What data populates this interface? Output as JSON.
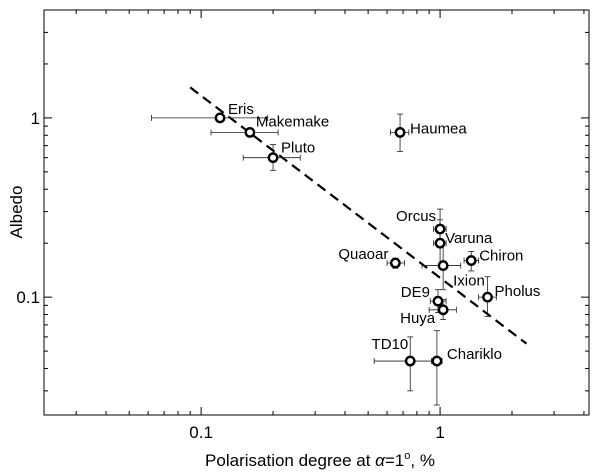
{
  "chart_data": {
    "type": "scatter",
    "xlabel_main": "Polarisation degree at ",
    "xlabel_alpha": "α",
    "xlabel_eq": "=1",
    "xlabel_deg": "o",
    "xlabel_unit": ", %",
    "ylabel": "Albedo",
    "xscale": "log",
    "yscale": "log",
    "xlim": [
      0.022,
      4.2
    ],
    "ylim": [
      0.022,
      4.0
    ],
    "xticks": [
      {
        "value": 0.1,
        "label": "0.1"
      },
      {
        "value": 1,
        "label": "1"
      }
    ],
    "yticks": [
      {
        "value": 0.1,
        "label": "0.1"
      },
      {
        "value": 1,
        "label": "1"
      }
    ],
    "grid": false,
    "trend_line": {
      "x": [
        0.09,
        2.3
      ],
      "y": [
        1.48,
        0.055
      ],
      "style": "dashed"
    },
    "points": [
      {
        "label": "Eris",
        "x": 0.12,
        "y": 1.0,
        "xerr": [
          0.062,
          0.19
        ],
        "yerr": [
          0.97,
          1.03
        ]
      },
      {
        "label": "Makemake",
        "x": 0.16,
        "y": 0.83,
        "xerr": [
          0.11,
          0.21
        ],
        "yerr": [
          0.79,
          0.87
        ]
      },
      {
        "label": "Pluto",
        "x": 0.2,
        "y": 0.6,
        "xerr": [
          0.15,
          0.26
        ],
        "yerr": [
          0.51,
          0.71
        ]
      },
      {
        "label": "Haumea",
        "x": 0.68,
        "y": 0.83,
        "xerr": [
          0.62,
          0.74
        ],
        "yerr": [
          0.65,
          1.05
        ]
      },
      {
        "label": "Orcus",
        "x": 1.0,
        "y": 0.24,
        "xerr": [
          0.94,
          1.06
        ],
        "yerr": [
          0.19,
          0.31
        ]
      },
      {
        "label": "Varuna",
        "x": 1.0,
        "y": 0.2,
        "xerr": [
          0.94,
          1.06
        ],
        "yerr": [
          0.15,
          0.27
        ]
      },
      {
        "label": "Chiron",
        "x": 1.35,
        "y": 0.16,
        "xerr": [
          1.26,
          1.45
        ],
        "yerr": [
          0.14,
          0.18
        ]
      },
      {
        "label": "Quaoar",
        "x": 0.65,
        "y": 0.155,
        "xerr": [
          0.6,
          0.71
        ],
        "yerr": [
          0.145,
          0.165
        ]
      },
      {
        "label": "Ixion",
        "x": 1.03,
        "y": 0.15,
        "xerr": [
          0.84,
          1.22
        ],
        "yerr": [
          0.11,
          0.2
        ]
      },
      {
        "label": "Pholus",
        "x": 1.58,
        "y": 0.1,
        "xerr": [
          1.45,
          1.72
        ],
        "yerr": [
          0.078,
          0.13
        ]
      },
      {
        "label": "DE9",
        "x": 0.98,
        "y": 0.095,
        "xerr": [
          0.91,
          1.06
        ],
        "yerr": [
          0.082,
          0.11
        ]
      },
      {
        "label": "Huya",
        "x": 1.03,
        "y": 0.085,
        "xerr": [
          0.9,
          1.17
        ],
        "yerr": [
          0.075,
          0.097
        ]
      },
      {
        "label": "TD10",
        "x": 0.75,
        "y": 0.044,
        "xerr": [
          0.53,
          0.95
        ],
        "yerr": [
          0.03,
          0.06
        ]
      },
      {
        "label": "Chariklo",
        "x": 0.97,
        "y": 0.044,
        "xerr": [
          0.92,
          1.02
        ],
        "yerr": [
          0.025,
          0.065
        ]
      }
    ]
  }
}
